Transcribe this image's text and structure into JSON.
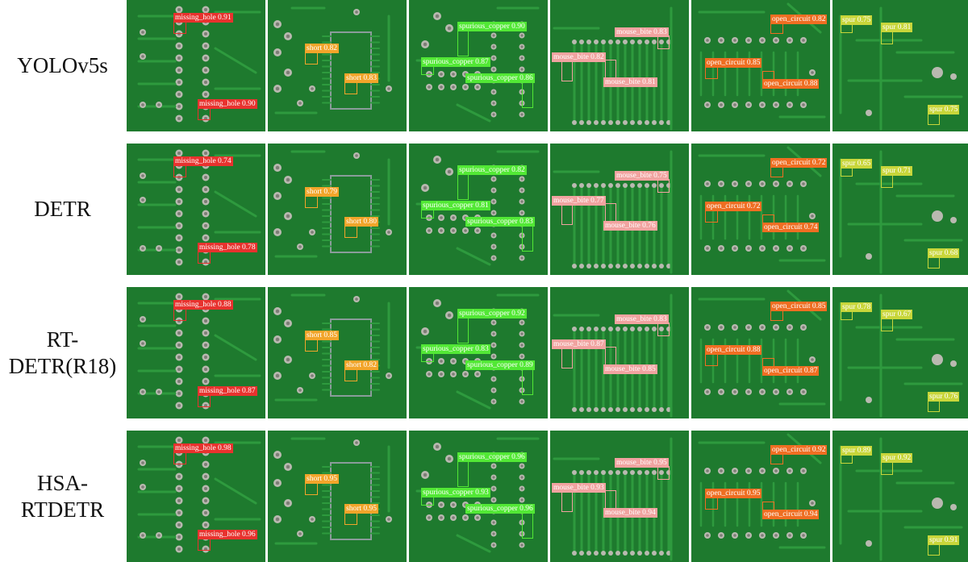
{
  "colors": {
    "missing_hole": "#e8322e",
    "short": "#f2a52a",
    "spurious_copper": "#52e835",
    "mouse_bite": "#f1a3a0",
    "open_circuit": "#ef6e22",
    "spur": "#c8d63a",
    "board": "#1e7a2e"
  },
  "rows": [
    {
      "label_lines": [
        "YOLOv5s"
      ],
      "panels": [
        [
          {
            "cls": "missing_hole",
            "label": "missing_hole 0.91"
          },
          {
            "cls": "missing_hole",
            "label": "missing_hole 0.90"
          }
        ],
        [
          {
            "cls": "short",
            "label": "short 0.82"
          },
          {
            "cls": "short",
            "label": "short 0.83"
          }
        ],
        [
          {
            "cls": "spurious_copper",
            "label": "spurious_copper 0.90"
          },
          {
            "cls": "spurious_copper",
            "label": "spurious_copper 0.87"
          },
          {
            "cls": "spurious_copper",
            "label": "spurious_copper 0.86"
          }
        ],
        [
          {
            "cls": "mouse_bite",
            "label": "mouse_bite 0.83"
          },
          {
            "cls": "mouse_bite",
            "label": "mouse_bite 0.82"
          },
          {
            "cls": "mouse_bite",
            "label": "mouse_bite 0.81"
          }
        ],
        [
          {
            "cls": "open_circuit",
            "label": "open_circuit 0.82"
          },
          {
            "cls": "open_circuit",
            "label": "open_circuit 0.85"
          },
          {
            "cls": "open_circuit",
            "label": "open_circuit 0.88"
          }
        ],
        [
          {
            "cls": "spur",
            "label": "spur 0.75"
          },
          {
            "cls": "spur",
            "label": "spur 0.81"
          },
          {
            "cls": "spur",
            "label": "spur 0.75"
          }
        ]
      ]
    },
    {
      "label_lines": [
        "DETR"
      ],
      "panels": [
        [
          {
            "cls": "missing_hole",
            "label": "missing_hole 0.74"
          },
          {
            "cls": "missing_hole",
            "label": "missing_hole 0.78"
          }
        ],
        [
          {
            "cls": "short",
            "label": "short 0.79"
          },
          {
            "cls": "short",
            "label": "short 0.80"
          }
        ],
        [
          {
            "cls": "spurious_copper",
            "label": "spurious_copper 0.82"
          },
          {
            "cls": "spurious_copper",
            "label": "spurious_copper 0.81"
          },
          {
            "cls": "spurious_copper",
            "label": "spurious_copper 0.83"
          }
        ],
        [
          {
            "cls": "mouse_bite",
            "label": "mouse_bite 0.75"
          },
          {
            "cls": "mouse_bite",
            "label": "mouse_bite 0.77"
          },
          {
            "cls": "mouse_bite",
            "label": "mouse_bite 0.76"
          }
        ],
        [
          {
            "cls": "open_circuit",
            "label": "open_circuit 0.72"
          },
          {
            "cls": "open_circuit",
            "label": "open_circuit 0.72"
          },
          {
            "cls": "open_circuit",
            "label": "open_circuit 0.74"
          }
        ],
        [
          {
            "cls": "spur",
            "label": "spur 0.65"
          },
          {
            "cls": "spur",
            "label": "spur 0.71"
          },
          {
            "cls": "spur",
            "label": "spur 0.68"
          }
        ]
      ]
    },
    {
      "label_lines": [
        "RT-",
        "DETR(R18)"
      ],
      "panels": [
        [
          {
            "cls": "missing_hole",
            "label": "missing_hole 0.88"
          },
          {
            "cls": "missing_hole",
            "label": "missing_hole 0.87"
          }
        ],
        [
          {
            "cls": "short",
            "label": "short 0.85"
          },
          {
            "cls": "short",
            "label": "short 0.82"
          }
        ],
        [
          {
            "cls": "spurious_copper",
            "label": "spurious_copper 0.92"
          },
          {
            "cls": "spurious_copper",
            "label": "spurious_copper 0.83"
          },
          {
            "cls": "spurious_copper",
            "label": "spurious_copper 0.89"
          }
        ],
        [
          {
            "cls": "mouse_bite",
            "label": "mouse_bite 0.83"
          },
          {
            "cls": "mouse_bite",
            "label": "mouse_bite 0.87"
          },
          {
            "cls": "mouse_bite",
            "label": "mouse_bite 0.85"
          }
        ],
        [
          {
            "cls": "open_circuit",
            "label": "open_circuit 0.85"
          },
          {
            "cls": "open_circuit",
            "label": "open_circuit 0.88"
          },
          {
            "cls": "open_circuit",
            "label": "open_circuit 0.87"
          }
        ],
        [
          {
            "cls": "spur",
            "label": "spur 0.78"
          },
          {
            "cls": "spur",
            "label": "spur 0.67"
          },
          {
            "cls": "spur",
            "label": "spur 0.76"
          }
        ]
      ]
    },
    {
      "label_lines": [
        "HSA-",
        "RTDETR"
      ],
      "panels": [
        [
          {
            "cls": "missing_hole",
            "label": "missing_hole 0.98"
          },
          {
            "cls": "missing_hole",
            "label": "missing_hole 0.96"
          }
        ],
        [
          {
            "cls": "short",
            "label": "short 0.95"
          },
          {
            "cls": "short",
            "label": "short 0.95"
          }
        ],
        [
          {
            "cls": "spurious_copper",
            "label": "spurious_copper 0.96"
          },
          {
            "cls": "spurious_copper",
            "label": "spurious_copper 0.93"
          },
          {
            "cls": "spurious_copper",
            "label": "spurious_copper 0.96"
          }
        ],
        [
          {
            "cls": "mouse_bite",
            "label": "mouse_bite 0.95"
          },
          {
            "cls": "mouse_bite",
            "label": "mouse_bite 0.93"
          },
          {
            "cls": "mouse_bite",
            "label": "mouse_bite 0.94"
          }
        ],
        [
          {
            "cls": "open_circuit",
            "label": "open_circuit 0.92"
          },
          {
            "cls": "open_circuit",
            "label": "open_circuit 0.95"
          },
          {
            "cls": "open_circuit",
            "label": "open_circuit 0.94"
          }
        ],
        [
          {
            "cls": "spur",
            "label": "spur 0.89"
          },
          {
            "cls": "spur",
            "label": "spur 0.92"
          },
          {
            "cls": "spur",
            "label": "spur 0.91"
          }
        ]
      ]
    }
  ]
}
